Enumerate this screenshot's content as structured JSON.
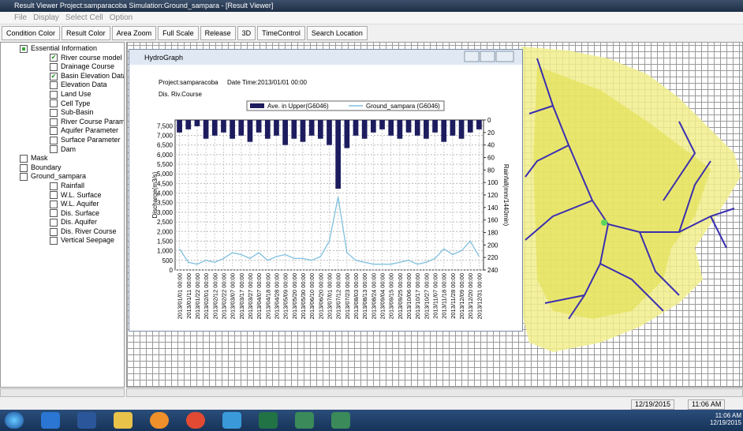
{
  "window": {
    "title": "Result Viewer Project:samparacoba Simulation:Ground_sampara - [Result Viewer]"
  },
  "menu": [
    "File",
    "Display",
    "Select Cell",
    "Option"
  ],
  "toolbar": [
    "Condition Color",
    "Result Color",
    "Area Zoom",
    "Full Scale",
    "Release",
    "3D",
    "TimeControl",
    "Search Location"
  ],
  "tree": [
    {
      "label": "Essential Information",
      "level": 1,
      "checked": "partial"
    },
    {
      "label": "River course model",
      "level": 2,
      "checked": true
    },
    {
      "label": "Drainage Course",
      "level": 2,
      "checked": false
    },
    {
      "label": "Basin Elevation Data",
      "level": 2,
      "checked": true
    },
    {
      "label": "Elevation Data",
      "level": 2,
      "checked": false
    },
    {
      "label": "Land Use",
      "level": 2,
      "checked": false
    },
    {
      "label": "Cell Type",
      "level": 2,
      "checked": false
    },
    {
      "label": "Sub-Basin",
      "level": 2,
      "checked": false
    },
    {
      "label": "River Course Param",
      "level": 2,
      "checked": false
    },
    {
      "label": "Aquifer Parameter",
      "level": 2,
      "checked": false
    },
    {
      "label": "Surface Parameter",
      "level": 2,
      "checked": false
    },
    {
      "label": "Dam",
      "level": 2,
      "checked": false
    },
    {
      "label": "Mask",
      "level": 1,
      "checked": false
    },
    {
      "label": "Boundary",
      "level": 1,
      "checked": false
    },
    {
      "label": "Ground_sampara",
      "level": 1,
      "checked": false
    },
    {
      "label": "Rainfall",
      "level": 2,
      "checked": false
    },
    {
      "label": "W.L. Surface",
      "level": 2,
      "checked": false
    },
    {
      "label": "W.L. Aquifer",
      "level": 2,
      "checked": false
    },
    {
      "label": "Dis. Surface",
      "level": 2,
      "checked": false
    },
    {
      "label": "Dis. Aquifer",
      "level": 2,
      "checked": false
    },
    {
      "label": "Dis. River Course",
      "level": 2,
      "checked": false
    },
    {
      "label": "Vertical Seepage",
      "level": 2,
      "checked": false
    }
  ],
  "hydrograph": {
    "title": "HydroGraph",
    "project": "Project:samparacoba",
    "datetime": "Date Time:2013/01/01 00:00",
    "item": "Dis. Riv.Course",
    "chart_data": {
      "type": "combo",
      "ylabel": "Discharge(m3/s)",
      "y2label": "Rainfall(mm/1440min)",
      "categories": [
        "2013/01/01 00:00",
        "2013/01/11 00:00",
        "2013/01/22 00:00",
        "2013/02/01 00:00",
        "2013/02/12 00:00",
        "2013/02/22 00:00",
        "2013/03/07 00:00",
        "2013/03/17 00:00",
        "2013/03/27 00:00",
        "2013/04/07 00:00",
        "2013/04/18 00:00",
        "2013/04/28 00:00",
        "2013/05/09 00:00",
        "2013/05/20 00:00",
        "2013/05/30 00:00",
        "2013/06/10 00:00",
        "2013/06/20 00:00",
        "2013/07/01 00:00",
        "2013/07/12 00:00",
        "2013/07/23 00:00",
        "2013/08/03 00:00",
        "2013/08/13 00:00",
        "2013/08/24 00:00",
        "2013/09/04 00:00",
        "2013/09/15 00:00",
        "2013/09/25 00:00",
        "2013/10/06 00:00",
        "2013/10/17 00:00",
        "2013/10/27 00:00",
        "2013/11/07 00:00",
        "2013/11/18 00:00",
        "2013/11/28 00:00",
        "2013/12/09 00:00",
        "2013/12/20 00:00",
        "2013/12/31 00:00"
      ],
      "series": [
        {
          "name": "Ave. in Upper(G6046)",
          "type": "bar",
          "axis": "y2",
          "color": "#1c1c5e",
          "values": [
            20,
            15,
            10,
            30,
            25,
            20,
            30,
            25,
            35,
            20,
            30,
            25,
            40,
            30,
            35,
            25,
            30,
            40,
            110,
            45,
            25,
            30,
            20,
            15,
            25,
            30,
            20,
            25,
            30,
            20,
            35,
            25,
            30,
            20,
            15
          ]
        },
        {
          "name": "Ground_sampara (G6046)",
          "type": "line",
          "axis": "y",
          "color": "#7fc0e0",
          "values": [
            1100,
            400,
            300,
            500,
            400,
            600,
            900,
            800,
            600,
            900,
            500,
            700,
            800,
            600,
            600,
            500,
            700,
            1500,
            3800,
            900,
            500,
            400,
            300,
            300,
            300,
            400,
            500,
            300,
            400,
            600,
            1100,
            800,
            1000,
            1500,
            700
          ]
        }
      ],
      "ylim": [
        0,
        7800
      ],
      "yticks": [
        0,
        500,
        {
          "value": 1000,
          "label": "1,000"
        },
        {
          "value": 1500,
          "label": "1,500"
        },
        {
          "value": 2000,
          "label": "2,000"
        },
        {
          "value": 2500,
          "label": "2,500"
        },
        {
          "value": 3000,
          "label": "3,000"
        },
        {
          "value": 3500,
          "label": "3,500"
        },
        {
          "value": 4000,
          "label": "4,000"
        },
        {
          "value": 4500,
          "label": "4,500"
        },
        {
          "value": 5000,
          "label": "5,000"
        },
        {
          "value": 5500,
          "label": "5,500"
        },
        {
          "value": 6000,
          "label": "6,000"
        },
        {
          "value": 6500,
          "label": "6,500"
        },
        {
          "value": 7000,
          "label": "7,000"
        },
        {
          "value": 7500,
          "label": "7,500"
        }
      ],
      "y2lim": [
        0,
        240
      ],
      "y2_inverted": true,
      "y2ticks": [
        0,
        20,
        40,
        60,
        80,
        100,
        120,
        140,
        160,
        180,
        200,
        220,
        240
      ],
      "grid": true
    }
  },
  "status": {
    "date": "12/19/2015",
    "time": "11:06 AM"
  },
  "taskbar": {
    "time": "11:06 AM",
    "date": "12/19/2015"
  }
}
